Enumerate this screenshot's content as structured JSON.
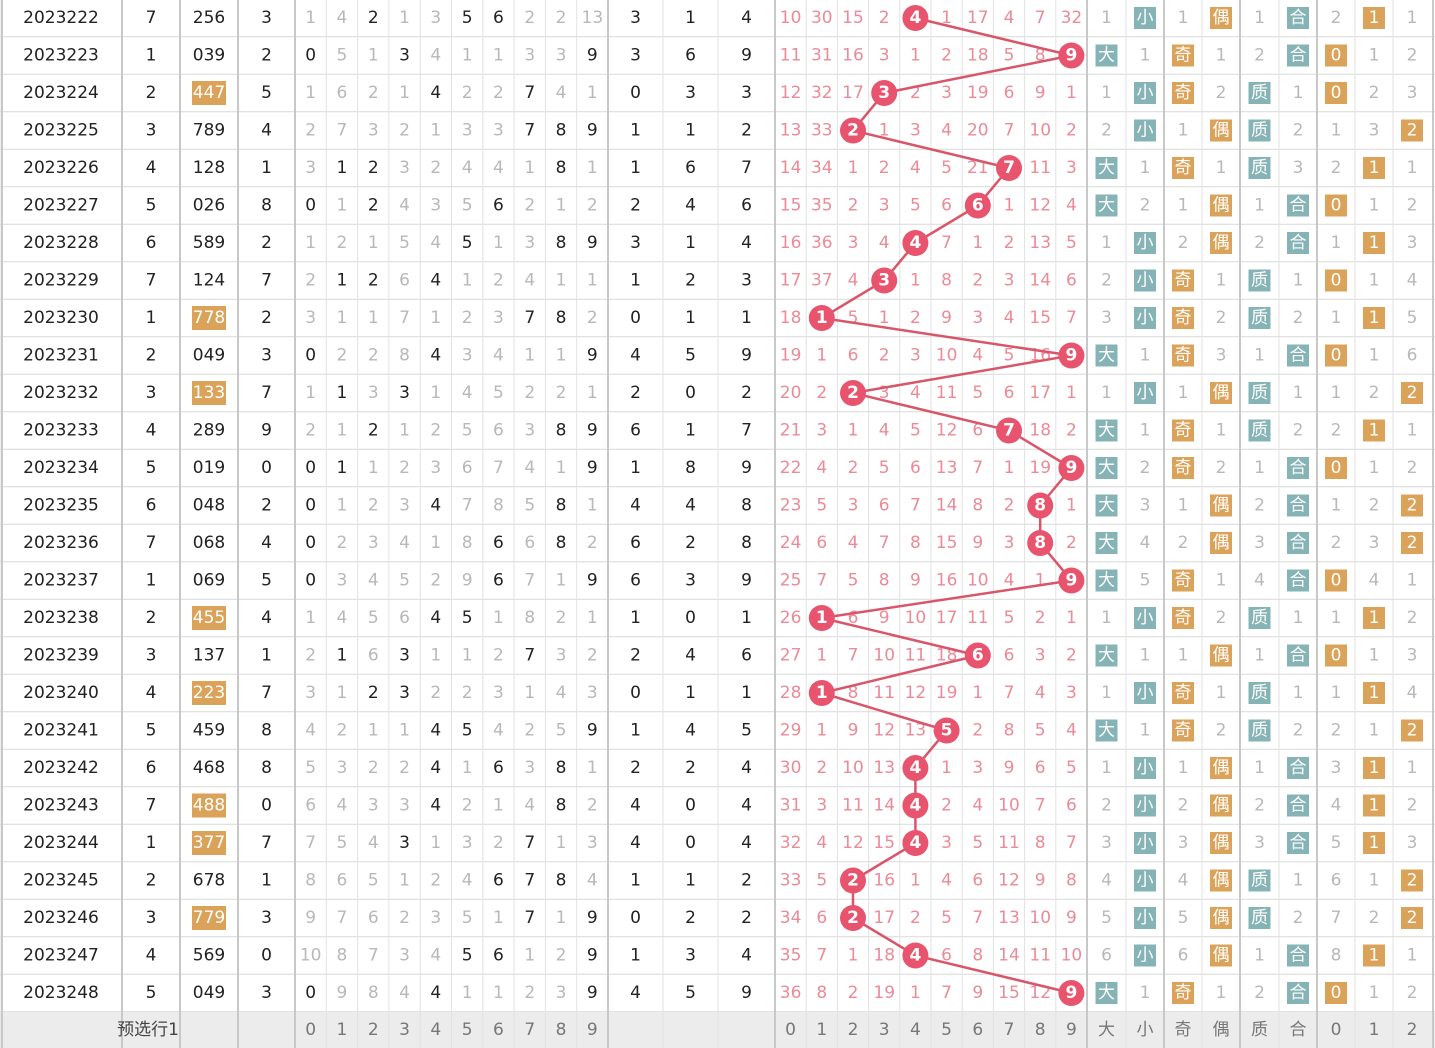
{
  "rows": [
    {
      "period": "2023222",
      "a": 7,
      "num": "256",
      "b": 3,
      "d1": [
        1,
        4,
        2,
        1,
        3,
        5,
        6,
        2,
        2,
        13
      ],
      "c": [
        3,
        1,
        4
      ],
      "d2": [
        10,
        30,
        15,
        2,
        4,
        1,
        17,
        4,
        7,
        32
      ],
      "bs": [
        1,
        "小"
      ],
      "oe": [
        1,
        "偶"
      ],
      "pc": [
        1,
        "合"
      ],
      "m3": [
        2,
        "1",
        1
      ]
    },
    {
      "period": "2023223",
      "a": 1,
      "num": "039",
      "b": 2,
      "d1": [
        0,
        5,
        1,
        3,
        4,
        1,
        1,
        3,
        3,
        9
      ],
      "c": [
        3,
        6,
        9
      ],
      "d2": [
        11,
        31,
        16,
        3,
        1,
        2,
        18,
        5,
        8,
        9
      ],
      "bs": [
        "大",
        1
      ],
      "oe": [
        "奇",
        1
      ],
      "pc": [
        2,
        "合"
      ],
      "m3": [
        "0",
        1,
        2
      ]
    },
    {
      "period": "2023224",
      "a": 2,
      "num": "447",
      "b": 5,
      "d1": [
        1,
        6,
        2,
        1,
        4,
        2,
        2,
        7,
        4,
        1
      ],
      "c": [
        0,
        3,
        3
      ],
      "d2": [
        12,
        32,
        17,
        3,
        2,
        3,
        19,
        6,
        9,
        1
      ],
      "bs": [
        1,
        "小"
      ],
      "oe": [
        "奇",
        2
      ],
      "pc": [
        "质",
        1
      ],
      "m3": [
        "0",
        2,
        3
      ]
    },
    {
      "period": "2023225",
      "a": 3,
      "num": "789",
      "b": 4,
      "d1": [
        2,
        7,
        3,
        2,
        1,
        3,
        3,
        7,
        8,
        9
      ],
      "c": [
        1,
        1,
        2
      ],
      "d2": [
        13,
        33,
        2,
        1,
        3,
        4,
        20,
        7,
        10,
        2
      ],
      "bs": [
        2,
        "小"
      ],
      "oe": [
        1,
        "偶"
      ],
      "pc": [
        "质",
        2
      ],
      "m3": [
        1,
        3,
        "2"
      ]
    },
    {
      "period": "2023226",
      "a": 4,
      "num": "128",
      "b": 1,
      "d1": [
        3,
        1,
        2,
        3,
        2,
        4,
        4,
        1,
        8,
        1
      ],
      "c": [
        1,
        6,
        7
      ],
      "d2": [
        14,
        34,
        1,
        2,
        4,
        5,
        21,
        7,
        11,
        3
      ],
      "bs": [
        "大",
        1
      ],
      "oe": [
        "奇",
        1
      ],
      "pc": [
        "质",
        3
      ],
      "m3": [
        2,
        "1",
        1
      ]
    },
    {
      "period": "2023227",
      "a": 5,
      "num": "026",
      "b": 8,
      "d1": [
        0,
        1,
        2,
        4,
        3,
        5,
        6,
        2,
        1,
        2
      ],
      "c": [
        2,
        4,
        6
      ],
      "d2": [
        15,
        35,
        2,
        3,
        5,
        6,
        6,
        1,
        12,
        4
      ],
      "bs": [
        "大",
        2
      ],
      "oe": [
        1,
        "偶"
      ],
      "pc": [
        1,
        "合"
      ],
      "m3": [
        "0",
        1,
        2
      ]
    },
    {
      "period": "2023228",
      "a": 6,
      "num": "589",
      "b": 2,
      "d1": [
        1,
        2,
        1,
        5,
        4,
        5,
        1,
        3,
        8,
        9
      ],
      "c": [
        3,
        1,
        4
      ],
      "d2": [
        16,
        36,
        3,
        4,
        4,
        7,
        1,
        2,
        13,
        5
      ],
      "bs": [
        1,
        "小"
      ],
      "oe": [
        2,
        "偶"
      ],
      "pc": [
        2,
        "合"
      ],
      "m3": [
        1,
        "1",
        3
      ]
    },
    {
      "period": "2023229",
      "a": 7,
      "num": "124",
      "b": 7,
      "d1": [
        2,
        1,
        2,
        6,
        4,
        1,
        2,
        4,
        1,
        1
      ],
      "c": [
        1,
        2,
        3
      ],
      "d2": [
        17,
        37,
        4,
        3,
        1,
        8,
        2,
        3,
        14,
        6
      ],
      "bs": [
        2,
        "小"
      ],
      "oe": [
        "奇",
        1
      ],
      "pc": [
        "质",
        1
      ],
      "m3": [
        "0",
        1,
        4
      ]
    },
    {
      "period": "2023230",
      "a": 1,
      "num": "778",
      "b": 2,
      "d1": [
        3,
        1,
        1,
        7,
        1,
        2,
        3,
        7,
        8,
        2
      ],
      "c": [
        0,
        1,
        1
      ],
      "d2": [
        18,
        1,
        5,
        1,
        2,
        9,
        3,
        4,
        15,
        7
      ],
      "bs": [
        3,
        "小"
      ],
      "oe": [
        "奇",
        2
      ],
      "pc": [
        "质",
        2
      ],
      "m3": [
        1,
        "1",
        5
      ]
    },
    {
      "period": "2023231",
      "a": 2,
      "num": "049",
      "b": 3,
      "d1": [
        0,
        2,
        2,
        8,
        4,
        3,
        4,
        1,
        1,
        9
      ],
      "c": [
        4,
        5,
        9
      ],
      "d2": [
        19,
        1,
        6,
        2,
        3,
        10,
        4,
        5,
        16,
        9
      ],
      "bs": [
        "大",
        1
      ],
      "oe": [
        "奇",
        3
      ],
      "pc": [
        1,
        "合"
      ],
      "m3": [
        "0",
        1,
        6
      ]
    },
    {
      "period": "2023232",
      "a": 3,
      "num": "133",
      "b": 7,
      "d1": [
        1,
        1,
        3,
        3,
        1,
        4,
        5,
        2,
        2,
        1
      ],
      "c": [
        2,
        0,
        2
      ],
      "d2": [
        20,
        2,
        2,
        3,
        4,
        11,
        5,
        6,
        17,
        1
      ],
      "bs": [
        1,
        "小"
      ],
      "oe": [
        1,
        "偶"
      ],
      "pc": [
        "质",
        1
      ],
      "m3": [
        1,
        2,
        "2"
      ]
    },
    {
      "period": "2023233",
      "a": 4,
      "num": "289",
      "b": 9,
      "d1": [
        2,
        1,
        2,
        1,
        2,
        5,
        6,
        3,
        8,
        9
      ],
      "c": [
        6,
        1,
        7
      ],
      "d2": [
        21,
        3,
        1,
        4,
        5,
        12,
        6,
        7,
        18,
        2
      ],
      "bs": [
        "大",
        1
      ],
      "oe": [
        "奇",
        1
      ],
      "pc": [
        "质",
        2
      ],
      "m3": [
        2,
        "1",
        1
      ]
    },
    {
      "period": "2023234",
      "a": 5,
      "num": "019",
      "b": 0,
      "d1": [
        0,
        1,
        1,
        2,
        3,
        6,
        7,
        4,
        1,
        9
      ],
      "c": [
        1,
        8,
        9
      ],
      "d2": [
        22,
        4,
        2,
        5,
        6,
        13,
        7,
        1,
        19,
        9
      ],
      "bs": [
        "大",
        2
      ],
      "oe": [
        "奇",
        2
      ],
      "pc": [
        1,
        "合"
      ],
      "m3": [
        "0",
        1,
        2
      ]
    },
    {
      "period": "2023235",
      "a": 6,
      "num": "048",
      "b": 2,
      "d1": [
        0,
        1,
        2,
        3,
        4,
        7,
        8,
        5,
        8,
        1
      ],
      "c": [
        4,
        4,
        8
      ],
      "d2": [
        23,
        5,
        3,
        6,
        7,
        14,
        8,
        2,
        8,
        1
      ],
      "bs": [
        "大",
        3
      ],
      "oe": [
        1,
        "偶"
      ],
      "pc": [
        2,
        "合"
      ],
      "m3": [
        1,
        2,
        "2"
      ]
    },
    {
      "period": "2023236",
      "a": 7,
      "num": "068",
      "b": 4,
      "d1": [
        0,
        2,
        3,
        4,
        1,
        8,
        6,
        6,
        8,
        2
      ],
      "c": [
        6,
        2,
        8
      ],
      "d2": [
        24,
        6,
        4,
        7,
        8,
        15,
        9,
        3,
        8,
        2
      ],
      "bs": [
        "大",
        4
      ],
      "oe": [
        2,
        "偶"
      ],
      "pc": [
        3,
        "合"
      ],
      "m3": [
        2,
        3,
        "2"
      ]
    },
    {
      "period": "2023237",
      "a": 1,
      "num": "069",
      "b": 5,
      "d1": [
        0,
        3,
        4,
        5,
        2,
        9,
        6,
        7,
        1,
        9
      ],
      "c": [
        6,
        3,
        9
      ],
      "d2": [
        25,
        7,
        5,
        8,
        9,
        16,
        10,
        4,
        1,
        9
      ],
      "bs": [
        "大",
        5
      ],
      "oe": [
        "奇",
        1
      ],
      "pc": [
        4,
        "合"
      ],
      "m3": [
        "0",
        4,
        1
      ]
    },
    {
      "period": "2023238",
      "a": 2,
      "num": "455",
      "b": 4,
      "d1": [
        1,
        4,
        5,
        6,
        4,
        5,
        1,
        8,
        2,
        1
      ],
      "c": [
        1,
        0,
        1
      ],
      "d2": [
        26,
        1,
        6,
        9,
        10,
        17,
        11,
        5,
        2,
        1
      ],
      "bs": [
        1,
        "小"
      ],
      "oe": [
        "奇",
        2
      ],
      "pc": [
        "质",
        1
      ],
      "m3": [
        1,
        "1",
        2
      ]
    },
    {
      "period": "2023239",
      "a": 3,
      "num": "137",
      "b": 1,
      "d1": [
        2,
        1,
        6,
        3,
        1,
        1,
        2,
        7,
        3,
        2
      ],
      "c": [
        2,
        4,
        6
      ],
      "d2": [
        27,
        1,
        7,
        10,
        11,
        18,
        6,
        6,
        3,
        2
      ],
      "bs": [
        "大",
        1
      ],
      "oe": [
        1,
        "偶"
      ],
      "pc": [
        1,
        "合"
      ],
      "m3": [
        "0",
        1,
        3
      ]
    },
    {
      "period": "2023240",
      "a": 4,
      "num": "223",
      "b": 7,
      "d1": [
        3,
        1,
        2,
        3,
        2,
        2,
        3,
        1,
        4,
        3
      ],
      "c": [
        0,
        1,
        1
      ],
      "d2": [
        28,
        1,
        8,
        11,
        12,
        19,
        1,
        7,
        4,
        3
      ],
      "bs": [
        1,
        "小"
      ],
      "oe": [
        "奇",
        1
      ],
      "pc": [
        "质",
        1
      ],
      "m3": [
        1,
        "1",
        4
      ]
    },
    {
      "period": "2023241",
      "a": 5,
      "num": "459",
      "b": 8,
      "d1": [
        4,
        2,
        1,
        1,
        4,
        5,
        4,
        2,
        5,
        9
      ],
      "c": [
        1,
        4,
        5
      ],
      "d2": [
        29,
        1,
        9,
        12,
        13,
        5,
        2,
        8,
        5,
        4
      ],
      "bs": [
        "大",
        1
      ],
      "oe": [
        "奇",
        2
      ],
      "pc": [
        "质",
        2
      ],
      "m3": [
        2,
        1,
        "2"
      ]
    },
    {
      "period": "2023242",
      "a": 6,
      "num": "468",
      "b": 8,
      "d1": [
        5,
        3,
        2,
        2,
        4,
        1,
        6,
        3,
        8,
        1
      ],
      "c": [
        2,
        2,
        4
      ],
      "d2": [
        30,
        2,
        10,
        13,
        4,
        1,
        3,
        9,
        6,
        5
      ],
      "bs": [
        1,
        "小"
      ],
      "oe": [
        1,
        "偶"
      ],
      "pc": [
        1,
        "合"
      ],
      "m3": [
        3,
        "1",
        1
      ]
    },
    {
      "period": "2023243",
      "a": 7,
      "num": "488",
      "b": 0,
      "d1": [
        6,
        4,
        3,
        3,
        4,
        2,
        1,
        4,
        8,
        2
      ],
      "c": [
        4,
        0,
        4
      ],
      "d2": [
        31,
        3,
        11,
        14,
        4,
        2,
        4,
        10,
        7,
        6
      ],
      "bs": [
        2,
        "小"
      ],
      "oe": [
        2,
        "偶"
      ],
      "pc": [
        2,
        "合"
      ],
      "m3": [
        4,
        "1",
        2
      ]
    },
    {
      "period": "2023244",
      "a": 1,
      "num": "377",
      "b": 7,
      "d1": [
        7,
        5,
        4,
        3,
        1,
        3,
        2,
        7,
        1,
        3
      ],
      "c": [
        4,
        0,
        4
      ],
      "d2": [
        32,
        4,
        12,
        15,
        4,
        3,
        5,
        11,
        8,
        7
      ],
      "bs": [
        3,
        "小"
      ],
      "oe": [
        3,
        "偶"
      ],
      "pc": [
        3,
        "合"
      ],
      "m3": [
        5,
        "1",
        3
      ]
    },
    {
      "period": "2023245",
      "a": 2,
      "num": "678",
      "b": 1,
      "d1": [
        8,
        6,
        5,
        1,
        2,
        4,
        6,
        7,
        8,
        4
      ],
      "c": [
        1,
        1,
        2
      ],
      "d2": [
        33,
        5,
        2,
        16,
        1,
        4,
        6,
        12,
        9,
        8
      ],
      "bs": [
        4,
        "小"
      ],
      "oe": [
        4,
        "偶"
      ],
      "pc": [
        "质",
        1
      ],
      "m3": [
        6,
        1,
        "2"
      ]
    },
    {
      "period": "2023246",
      "a": 3,
      "num": "779",
      "b": 3,
      "d1": [
        9,
        7,
        6,
        2,
        3,
        5,
        1,
        7,
        1,
        9
      ],
      "c": [
        0,
        2,
        2
      ],
      "d2": [
        34,
        6,
        2,
        17,
        2,
        5,
        7,
        13,
        10,
        9
      ],
      "bs": [
        5,
        "小"
      ],
      "oe": [
        5,
        "偶"
      ],
      "pc": [
        "质",
        2
      ],
      "m3": [
        7,
        2,
        "2"
      ]
    },
    {
      "period": "2023247",
      "a": 4,
      "num": "569",
      "b": 0,
      "d1": [
        10,
        8,
        7,
        3,
        4,
        5,
        6,
        1,
        2,
        9
      ],
      "c": [
        1,
        3,
        4
      ],
      "d2": [
        35,
        7,
        1,
        18,
        4,
        6,
        8,
        14,
        11,
        10
      ],
      "bs": [
        6,
        "小"
      ],
      "oe": [
        6,
        "偶"
      ],
      "pc": [
        1,
        "合"
      ],
      "m3": [
        8,
        "1",
        1
      ]
    },
    {
      "period": "2023248",
      "a": 5,
      "num": "049",
      "b": 3,
      "d1": [
        0,
        9,
        8,
        4,
        4,
        1,
        1,
        2,
        3,
        9
      ],
      "c": [
        4,
        5,
        9
      ],
      "d2": [
        36,
        8,
        2,
        19,
        1,
        7,
        9,
        15,
        12,
        9
      ],
      "bs": [
        "大",
        1
      ],
      "oe": [
        "奇",
        1
      ],
      "pc": [
        2,
        "合"
      ],
      "m3": [
        "0",
        1,
        2
      ]
    }
  ],
  "footer": {
    "label": "预选行1",
    "d1": [
      0,
      1,
      2,
      3,
      4,
      5,
      6,
      7,
      8,
      9
    ],
    "d2": [
      0,
      1,
      2,
      3,
      4,
      5,
      6,
      7,
      8,
      9
    ],
    "tags": [
      "大",
      "小",
      "奇",
      "偶",
      "质",
      "合"
    ],
    "m3": [
      0,
      1,
      2
    ]
  }
}
